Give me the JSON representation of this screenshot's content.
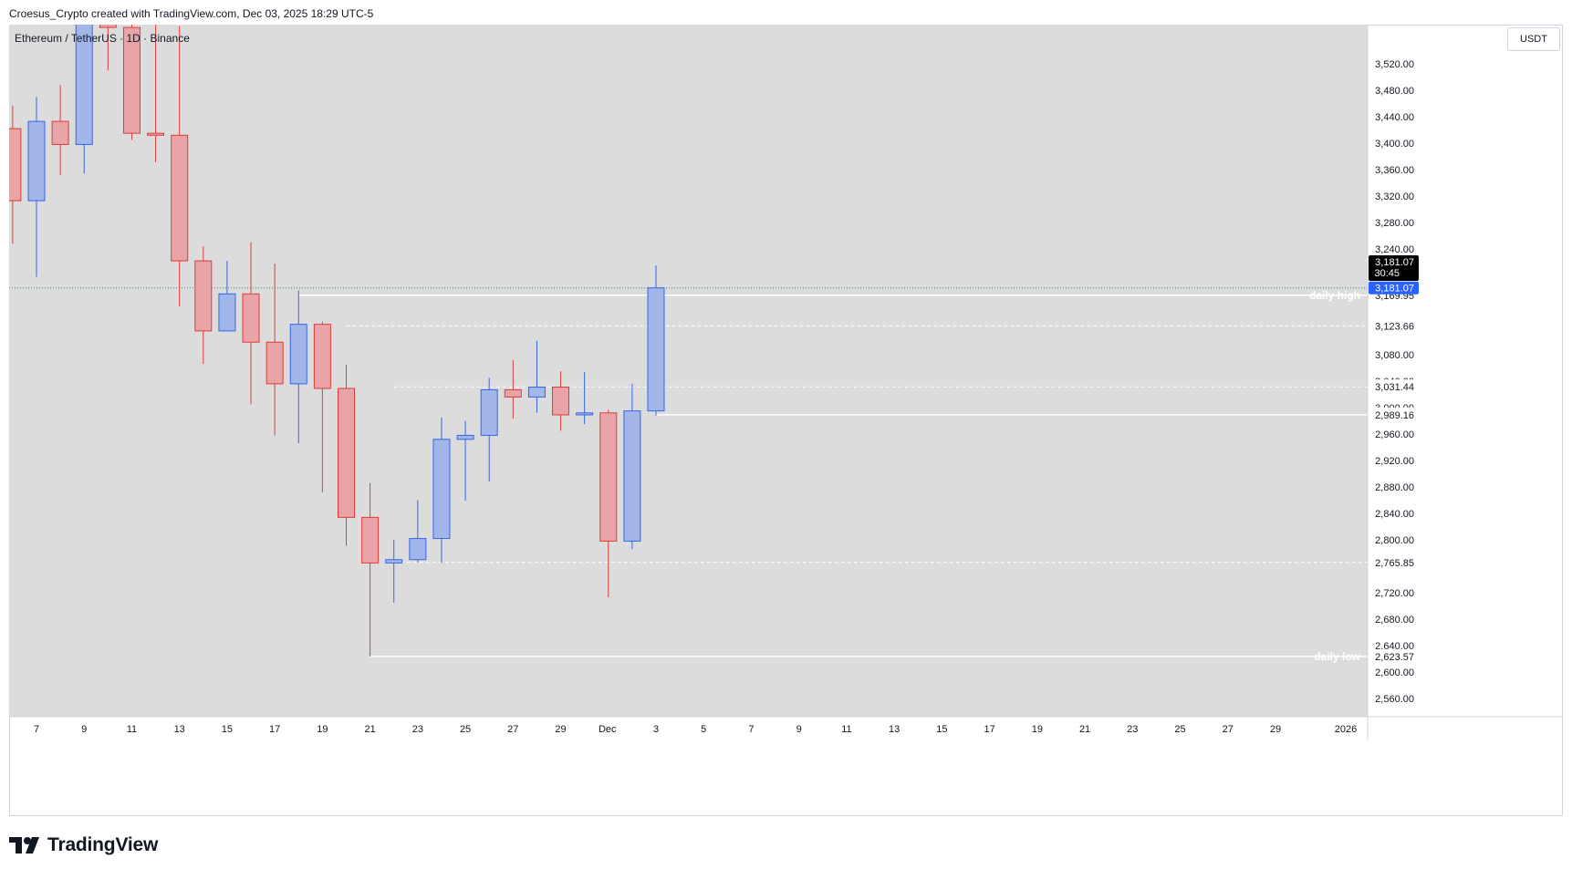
{
  "header": {
    "credit": "Croesus_Crypto created with TradingView.com, Dec 03, 2025 18:29 UTC-5"
  },
  "symbol": {
    "label": "Ethereum / TetherUS · 1D · Binance"
  },
  "price_scale": {
    "currency": "USDT"
  },
  "footer": {
    "logo_text": "TradingView"
  },
  "colors": {
    "up": "#a3b6ea",
    "up_border": "#3366e6",
    "down": "#e8a4a6",
    "down_border": "#e03b3b",
    "plot_bg": "#dcdcdc",
    "current_price_bg": "#2962ff",
    "countdown_bg": "#000000"
  },
  "chart_data": {
    "type": "candlestick",
    "title": "Ethereum / TetherUS · 1D · Binance",
    "ylim": [
      2520,
      3595
    ],
    "y_ticks": [
      2560,
      2600,
      2640,
      2680,
      2720,
      2800,
      2840,
      2880,
      2920,
      2960,
      3000,
      3040,
      3080,
      3240,
      3280,
      3320,
      3360,
      3400,
      3440,
      3480,
      3520
    ],
    "y_tick_labels": [
      "2,560.00",
      "2,600.00",
      "2,640.00",
      "2,680.00",
      "2,720.00",
      "2,800.00",
      "2,840.00",
      "2,880.00",
      "2,920.00",
      "2,960.00",
      "3,000.00",
      "3,040.00",
      "3,080.00",
      "3,240.00",
      "3,280.00",
      "3,320.00",
      "3,360.00",
      "3,400.00",
      "3,440.00",
      "3,480.00",
      "3,520.00"
    ],
    "x_ticks": [
      7,
      9,
      11,
      13,
      15,
      17,
      19,
      21,
      23,
      25,
      27,
      29,
      31,
      33,
      35,
      37,
      39,
      41,
      43,
      45,
      47,
      49,
      51,
      53,
      55,
      57,
      59,
      61
    ],
    "x_tick_labels": [
      "7",
      "9",
      "11",
      "13",
      "15",
      "17",
      "19",
      "21",
      "23",
      "25",
      "27",
      "29",
      "Dec",
      "3",
      "5",
      "7",
      "9",
      "11",
      "13",
      "15",
      "17",
      "19",
      "21",
      "23",
      "25",
      "27",
      "29",
      "2026"
    ],
    "candles": [
      {
        "day": 6,
        "open": 3422,
        "high": 3457,
        "low": 3248,
        "close": 3313
      },
      {
        "day": 7,
        "open": 3313,
        "high": 3470,
        "low": 3198,
        "close": 3433
      },
      {
        "day": 8,
        "open": 3433,
        "high": 3488,
        "low": 3352,
        "close": 3398
      },
      {
        "day": 9,
        "open": 3398,
        "high": 3635,
        "low": 3354,
        "close": 3610
      },
      {
        "day": 10,
        "open": 3610,
        "high": 3650,
        "low": 3510,
        "close": 3575
      },
      {
        "day": 11,
        "open": 3575,
        "high": 3600,
        "low": 3405,
        "close": 3415
      },
      {
        "day": 12,
        "open": 3415,
        "high": 3620,
        "low": 3371,
        "close": 3412
      },
      {
        "day": 13,
        "open": 3412,
        "high": 3577,
        "low": 3153,
        "close": 3222
      },
      {
        "day": 14,
        "open": 3222,
        "high": 3244,
        "low": 3066,
        "close": 3116
      },
      {
        "day": 15,
        "open": 3116,
        "high": 3222,
        "low": 3116,
        "close": 3172
      },
      {
        "day": 16,
        "open": 3172,
        "high": 3250,
        "low": 3005,
        "close": 3099
      },
      {
        "day": 17,
        "open": 3099,
        "high": 3218,
        "low": 2958,
        "close": 3036
      },
      {
        "day": 18,
        "open": 3036,
        "high": 3177,
        "low": 2946,
        "close": 3126
      },
      {
        "day": 19,
        "open": 3126,
        "high": 3130,
        "low": 2872,
        "close": 3029
      },
      {
        "day": 20,
        "open": 3029,
        "high": 3065,
        "low": 2791,
        "close": 2834
      },
      {
        "day": 21,
        "open": 2834,
        "high": 2886,
        "low": 2623.57,
        "close": 2765
      },
      {
        "day": 22,
        "open": 2765,
        "high": 2800,
        "low": 2705,
        "close": 2770
      },
      {
        "day": 23,
        "open": 2770,
        "high": 2860,
        "low": 2765.85,
        "close": 2802
      },
      {
        "day": 24,
        "open": 2802,
        "high": 2985,
        "low": 2765,
        "close": 2952
      },
      {
        "day": 25,
        "open": 2952,
        "high": 2980,
        "low": 2859,
        "close": 2958
      },
      {
        "day": 26,
        "open": 2958,
        "high": 3045,
        "low": 2888,
        "close": 3027
      },
      {
        "day": 27,
        "open": 3027,
        "high": 3072,
        "low": 2983,
        "close": 3016
      },
      {
        "day": 28,
        "open": 3016,
        "high": 3101,
        "low": 2992,
        "close": 3031
      },
      {
        "day": 29,
        "open": 3031,
        "high": 3055,
        "low": 2965,
        "close": 2989
      },
      {
        "day": 30,
        "open": 2989,
        "high": 3054,
        "low": 2975,
        "close": 2992
      },
      {
        "day": 31,
        "open": 2992,
        "high": 2997,
        "low": 2713,
        "close": 2798
      },
      {
        "day": 32,
        "open": 2798,
        "high": 3036,
        "low": 2786,
        "close": 2995
      },
      {
        "day": 33,
        "open": 2995,
        "high": 3215,
        "low": 2988,
        "close": 3181.07
      }
    ],
    "levels": [
      {
        "value": 3169.95,
        "label": "3,169.95",
        "style": "solid",
        "start_day": 18,
        "text": "daily high"
      },
      {
        "value": 3123.66,
        "label": "3,123.66",
        "style": "dashed",
        "start_day": 20,
        "text": ""
      },
      {
        "value": 3031.44,
        "label": "3,031.44",
        "style": "dashed",
        "start_day": 22,
        "text": ""
      },
      {
        "value": 2989.16,
        "label": "2,989.16",
        "style": "solid",
        "start_day": 33,
        "text": ""
      },
      {
        "value": 2765.85,
        "label": "2,765.85",
        "style": "dashed",
        "start_day": 22,
        "text": ""
      },
      {
        "value": 2623.57,
        "label": "2,623.57",
        "style": "solid",
        "start_day": 21,
        "text": "daily low"
      }
    ],
    "current_price": {
      "value": 3181.07,
      "label": "3,181.07",
      "countdown": "30:45"
    }
  }
}
